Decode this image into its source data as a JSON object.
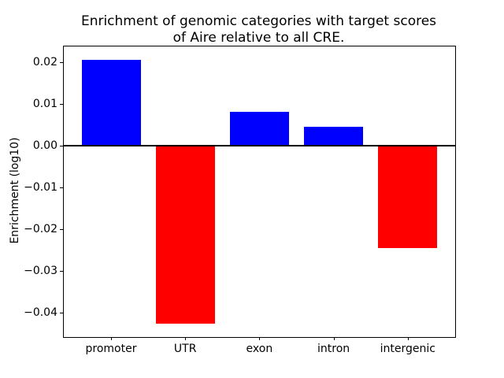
{
  "chart_data": {
    "type": "bar",
    "title": "Enrichment of genomic categories with target scores\nof Aire relative to all CRE.",
    "ylabel": "Enrichment (log10)",
    "xlabel": "",
    "categories": [
      "promoter",
      "UTR",
      "exon",
      "intron",
      "intergenic"
    ],
    "values": [
      0.0205,
      -0.0426,
      0.0081,
      0.0045,
      -0.0245
    ],
    "bar_colors": [
      "#0000ff",
      "#ff0000",
      "#0000ff",
      "#0000ff",
      "#ff0000"
    ],
    "positive_color": "#0000ff",
    "negative_color": "#ff0000",
    "ylim": [
      -0.0458,
      0.0237
    ],
    "yticks": [
      {
        "label": "0.02",
        "value": 0.02
      },
      {
        "label": "0.01",
        "value": 0.01
      },
      {
        "label": "0.00",
        "value": 0.0
      },
      {
        "label": "−0.01",
        "value": -0.01
      },
      {
        "label": "−0.02",
        "value": -0.02
      },
      {
        "label": "−0.03",
        "value": -0.03
      },
      {
        "label": "−0.04",
        "value": -0.04
      }
    ],
    "zero_line": true,
    "grid": false,
    "legend": false
  }
}
